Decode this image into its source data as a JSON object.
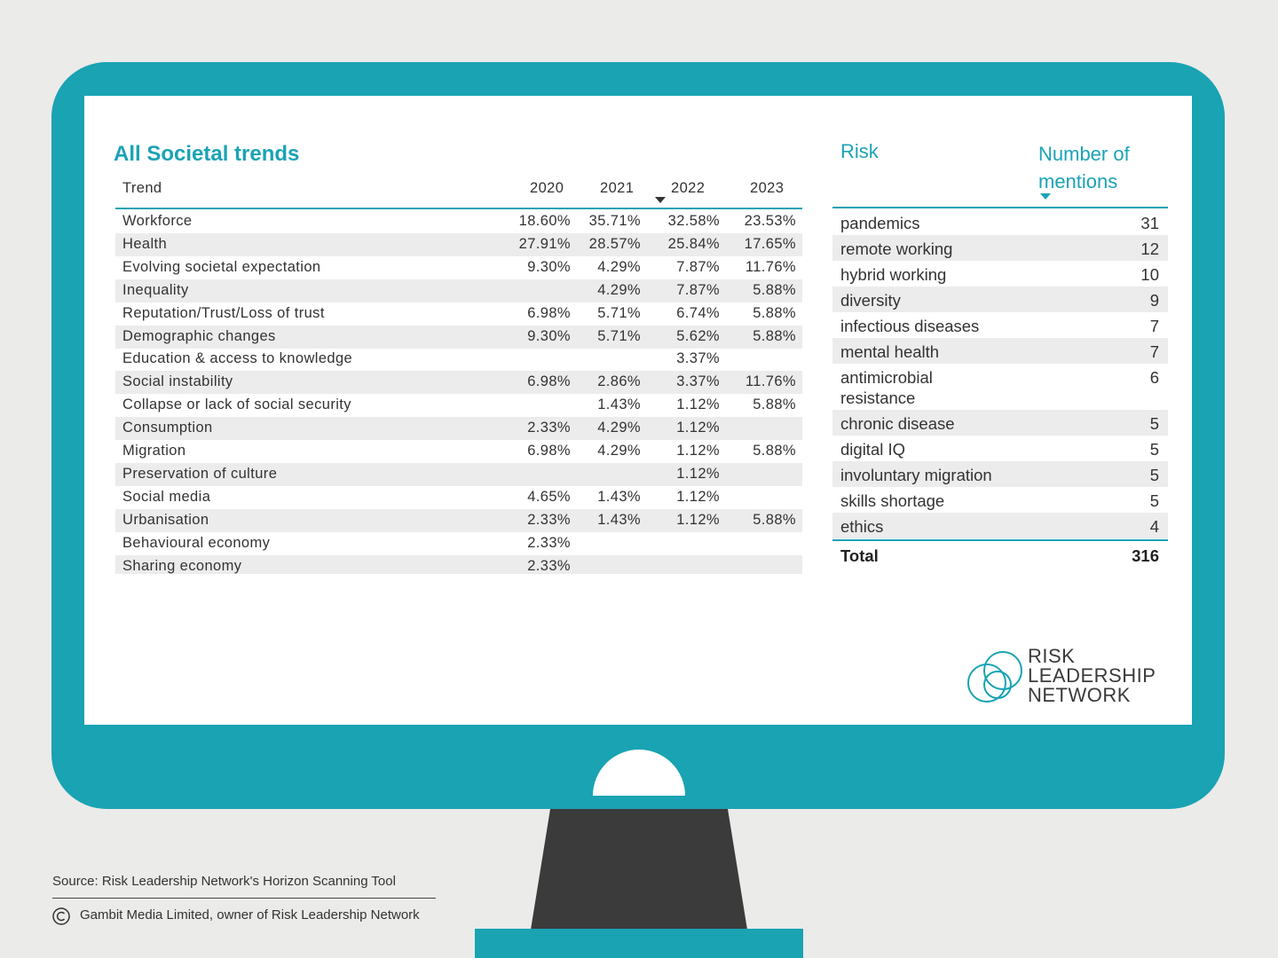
{
  "left_table": {
    "title": "All Societal trends",
    "headers": [
      "Trend",
      "2020",
      "2021",
      "2022",
      "2023"
    ],
    "rows": [
      [
        "Workforce",
        "18.60%",
        "35.71%",
        "32.58%",
        "23.53%"
      ],
      [
        "Health",
        "27.91%",
        "28.57%",
        "25.84%",
        "17.65%"
      ],
      [
        "Evolving societal expectation",
        "9.30%",
        "4.29%",
        "7.87%",
        "11.76%"
      ],
      [
        "Inequality",
        null,
        "4.29%",
        "7.87%",
        "5.88%"
      ],
      [
        "Reputation/Trust/Loss of trust",
        "6.98%",
        "5.71%",
        "6.74%",
        "5.88%"
      ],
      [
        "Demographic changes",
        "9.30%",
        "5.71%",
        "5.62%",
        "5.88%"
      ],
      [
        "Education & access to knowledge",
        null,
        null,
        "3.37%",
        null
      ],
      [
        "Social instability",
        "6.98%",
        "2.86%",
        "3.37%",
        "11.76%"
      ],
      [
        "Collapse or lack of social security",
        null,
        "1.43%",
        "1.12%",
        "5.88%"
      ],
      [
        "Consumption",
        "2.33%",
        "4.29%",
        "1.12%",
        null
      ],
      [
        "Migration",
        "6.98%",
        "4.29%",
        "1.12%",
        "5.88%"
      ],
      [
        "Preservation of culture",
        null,
        null,
        "1.12%",
        null
      ],
      [
        "Social media",
        "4.65%",
        "1.43%",
        "1.12%",
        null
      ],
      [
        "Urbanisation",
        "2.33%",
        "1.43%",
        "1.12%",
        "5.88%"
      ],
      [
        "Behavioural economy",
        "2.33%",
        null,
        null,
        null
      ],
      [
        "Sharing economy",
        "2.33%",
        null,
        null,
        null
      ]
    ]
  },
  "right_table": {
    "headers": [
      "Risk",
      "Number of mentions"
    ],
    "rows": [
      [
        "pandemics",
        31
      ],
      [
        "remote working",
        12
      ],
      [
        "hybrid working",
        10
      ],
      [
        "diversity",
        9
      ],
      [
        "infectious diseases",
        7
      ],
      [
        "mental health",
        7
      ],
      [
        "antimicrobial resistance",
        6
      ],
      [
        "chronic disease",
        5
      ],
      [
        "digital IQ",
        5
      ],
      [
        "involuntary migration",
        5
      ],
      [
        "skills shortage",
        5
      ],
      [
        "ethics",
        4
      ]
    ],
    "total": [
      "Total",
      316
    ]
  },
  "logo": [
    "RISK",
    "LEADERSHIP",
    "NETWORK"
  ],
  "footer": {
    "source": "Source: Risk Leadership Network's Horizon Scanning Tool",
    "copyright": "Gambit Media Limited, owner of Risk Leadership Network"
  }
}
